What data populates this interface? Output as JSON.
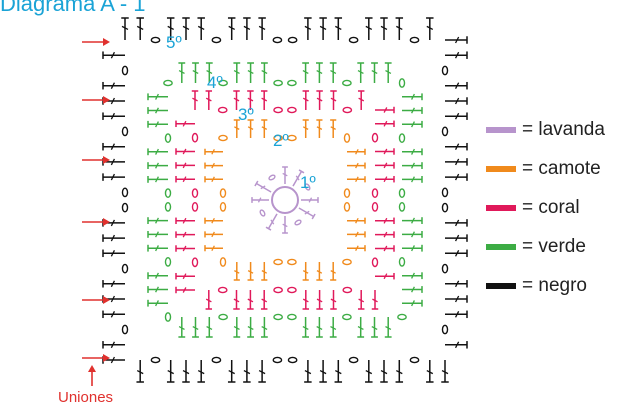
{
  "title": "Diagrama A - 1",
  "round_labels": [
    "1º",
    "2º",
    "3º",
    "4º",
    "5º"
  ],
  "join_label": "Uniones",
  "legend": [
    {
      "label": "= lavanda",
      "color": "#b794cc"
    },
    {
      "label": "= camote",
      "color": "#f08a1c"
    },
    {
      "label": "= coral",
      "color": "#e0195a"
    },
    {
      "label": "= verde",
      "color": "#3cac44"
    },
    {
      "label": "= negro",
      "color": "#111111"
    }
  ],
  "arrow_color": "#e0312e"
}
